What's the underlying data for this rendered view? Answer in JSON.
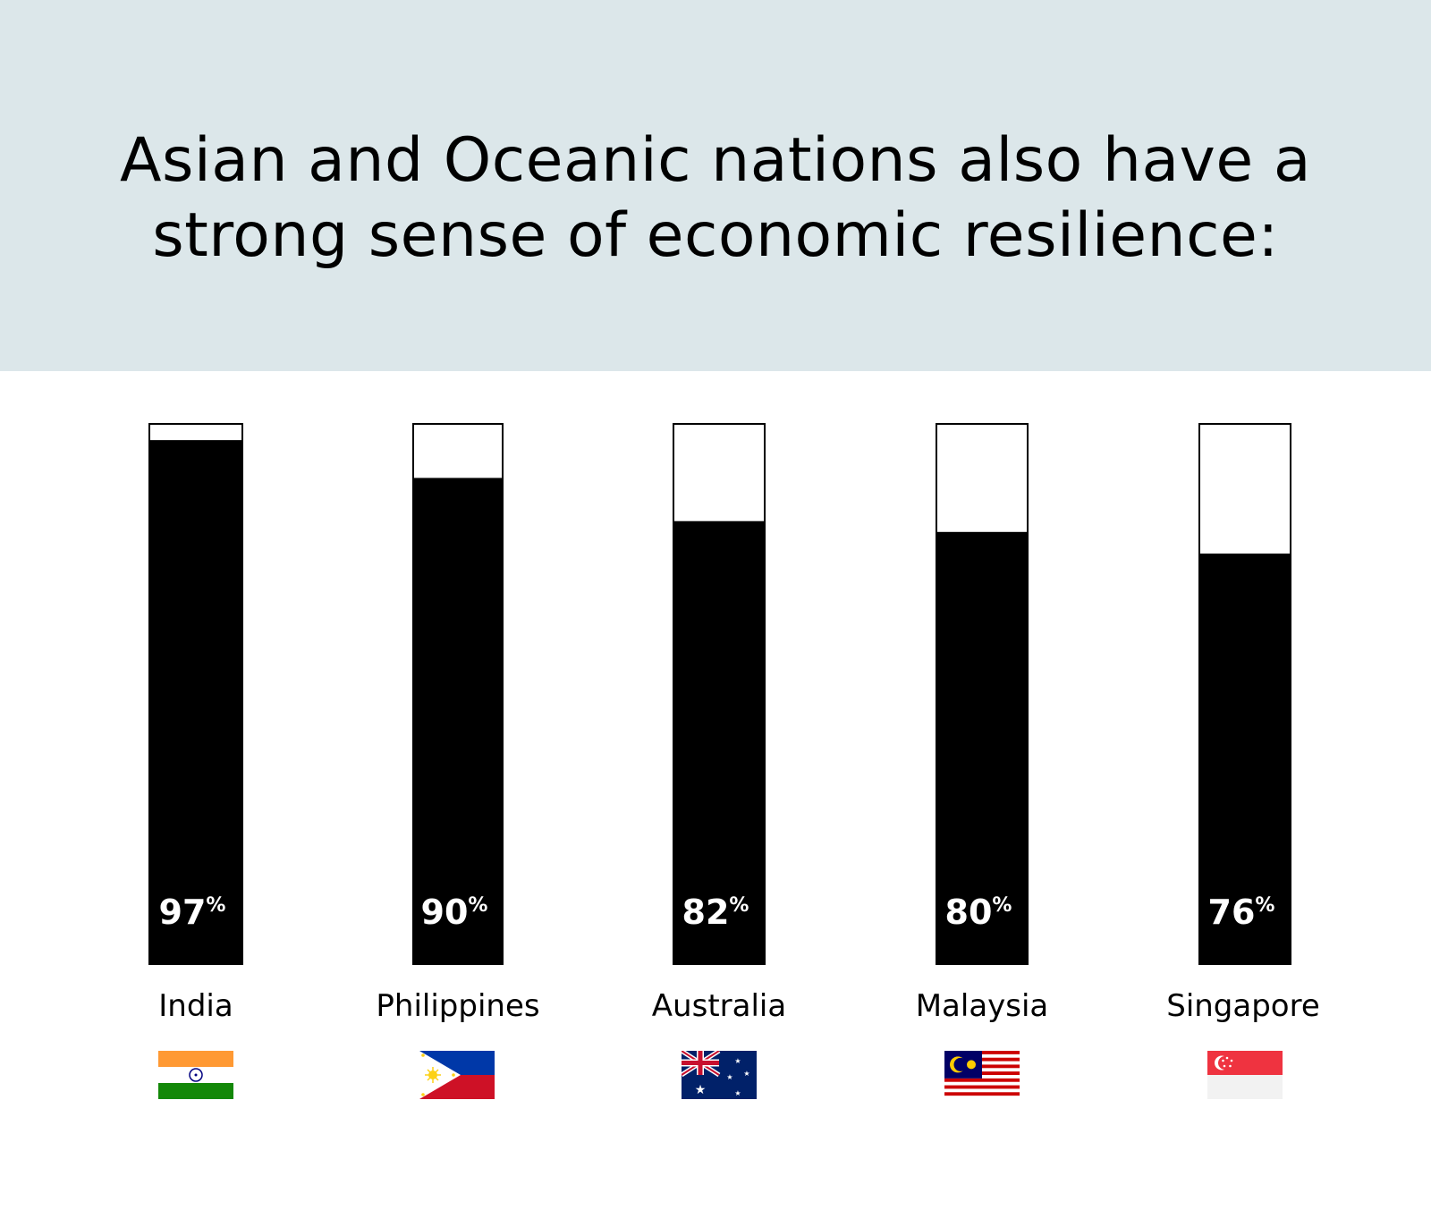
{
  "header": {
    "title_line1": "Asian and Oceanic nations also have a",
    "title_line2": "strong sense of economic resilience:"
  },
  "colors": {
    "header_bg": "#dce7ea",
    "bar_fill": "#000000",
    "bar_empty": "#ffffff",
    "value_text": "#ffffff"
  },
  "chart_data": {
    "type": "bar",
    "categories": [
      "India",
      "Philippines",
      "Australia",
      "Malaysia",
      "Singapore"
    ],
    "values": [
      97,
      90,
      82,
      80,
      76
    ],
    "value_labels": [
      "97",
      "90",
      "82",
      "80",
      "76"
    ],
    "value_suffix": "%",
    "ylim": [
      0,
      100
    ],
    "grid": false,
    "legend": "none"
  },
  "flags": [
    {
      "country": "India",
      "icon": "india-flag-icon"
    },
    {
      "country": "Philippines",
      "icon": "philippines-flag-icon"
    },
    {
      "country": "Australia",
      "icon": "australia-flag-icon"
    },
    {
      "country": "Malaysia",
      "icon": "malaysia-flag-icon"
    },
    {
      "country": "Singapore",
      "icon": "singapore-flag-icon"
    }
  ]
}
